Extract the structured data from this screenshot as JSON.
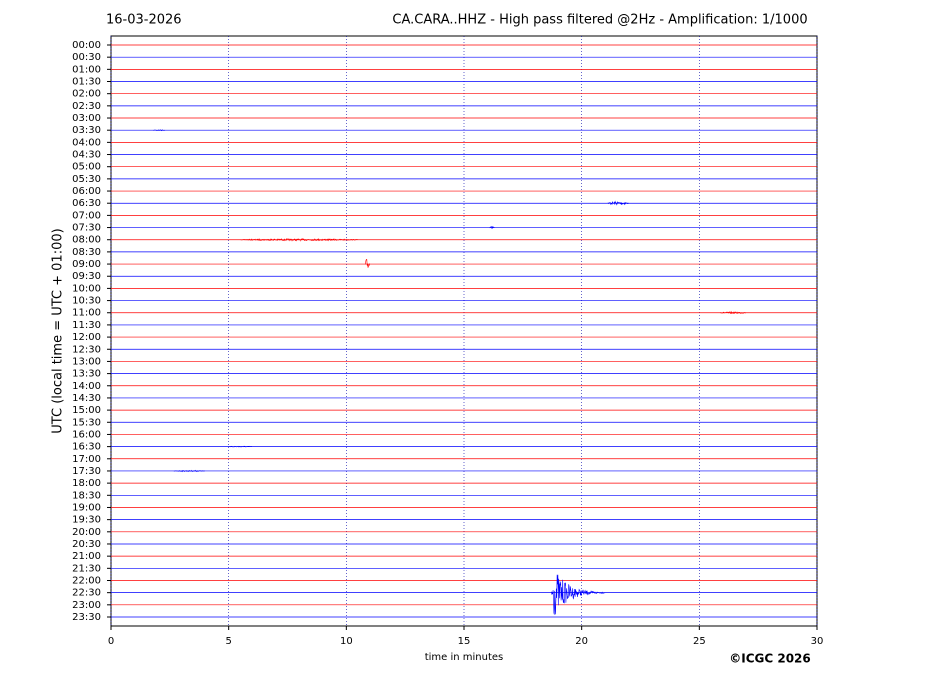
{
  "chart_data": {
    "type": "helicorder",
    "date": "16-03-2026",
    "title": "CA.CARA..HHZ - High pass filtered @2Hz - Amplification: 1/1000",
    "ylabel": "UTC (local time = UTC + 01:00)",
    "xlabel": "time in minutes",
    "copyright": "©ICGC 2026",
    "categories": [
      "00:00",
      "00:30",
      "01:00",
      "01:30",
      "02:00",
      "02:30",
      "03:00",
      "03:30",
      "04:00",
      "04:30",
      "05:00",
      "05:30",
      "06:00",
      "06:30",
      "07:00",
      "07:30",
      "08:00",
      "08:30",
      "09:00",
      "09:30",
      "10:00",
      "10:30",
      "11:00",
      "11:30",
      "12:00",
      "12:30",
      "13:00",
      "13:30",
      "14:00",
      "14:30",
      "15:00",
      "15:30",
      "16:00",
      "16:30",
      "17:00",
      "17:30",
      "18:00",
      "18:30",
      "19:00",
      "19:30",
      "20:00",
      "20:30",
      "21:00",
      "21:30",
      "22:00",
      "22:30",
      "23:00",
      "23:30"
    ],
    "colors": [
      "#ff0000",
      "#0000ff"
    ],
    "xlim": [
      0,
      30
    ],
    "xticks": [
      0,
      5,
      10,
      15,
      20,
      25,
      30
    ],
    "grid": true,
    "events": [
      {
        "row": 7,
        "x": 1.8,
        "duration": 0.5,
        "amplitude": 0.05
      },
      {
        "row": 13,
        "x": 21.1,
        "duration": 0.9,
        "amplitude": 0.15
      },
      {
        "row": 15,
        "x": 16.1,
        "duration": 0.2,
        "amplitude": 0.1
      },
      {
        "row": 16,
        "x": 5.5,
        "duration": 5,
        "amplitude": 0.08
      },
      {
        "row": 18,
        "x": 10.8,
        "duration": 0.2,
        "amplitude": 0.5
      },
      {
        "row": 22,
        "x": 25.9,
        "duration": 1.1,
        "amplitude": 0.08
      },
      {
        "row": 33,
        "x": 5,
        "duration": 1,
        "amplitude": 0.05
      },
      {
        "row": 35,
        "x": 2.7,
        "duration": 1.3,
        "amplitude": 0.05
      },
      {
        "row": 45,
        "x": 18.7,
        "duration": 2.3,
        "amplitude": 2.1
      }
    ]
  }
}
